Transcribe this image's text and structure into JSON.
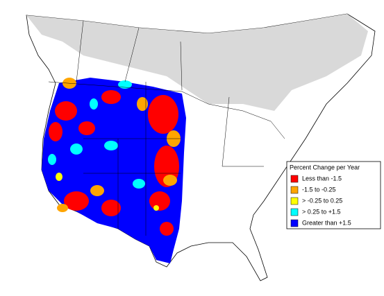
{
  "legend": {
    "title": "Percent Change per Year",
    "items": [
      {
        "label": "Less than -1.5",
        "color": "#ff0000"
      },
      {
        "label": "-1.5 to -0.25",
        "color": "#ffa500"
      },
      {
        "label": "> -0.25 to 0.25",
        "color": "#ffff00"
      },
      {
        "label": "> 0.25 to +1.5",
        "color": "#00ffff"
      },
      {
        "label": "Greater than +1.5",
        "color": "#0000ff"
      }
    ]
  }
}
